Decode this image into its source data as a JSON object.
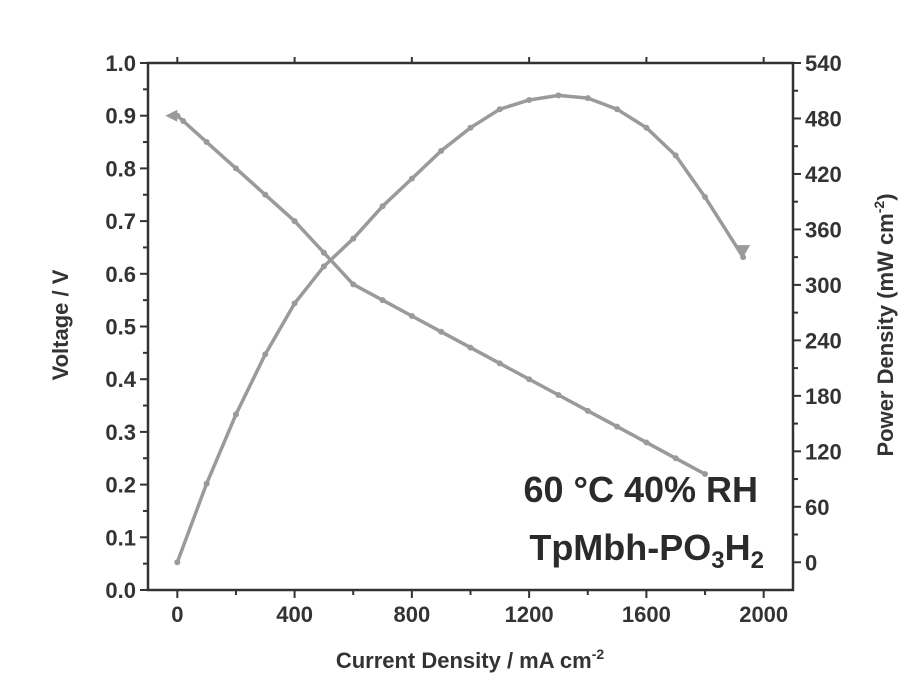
{
  "chart_data": {
    "type": "line",
    "xlabel": "Current Density / mA cm",
    "xlabel_sup": "-2",
    "ylabel_left": "Voltage / V",
    "ylabel_right": "Power Density (mW cm",
    "ylabel_right_sup": "-2",
    "ylabel_right_close": ")",
    "xlim": [
      -100,
      2100
    ],
    "ylim_left": [
      0.0,
      1.0
    ],
    "ylim_right": [
      -30,
      540
    ],
    "x_ticks": [
      0,
      400,
      800,
      1200,
      1600,
      2000
    ],
    "x_tick_labels": [
      "0",
      "400",
      "800",
      "1200",
      "1600",
      "2000"
    ],
    "y_left_ticks": [
      0.0,
      0.1,
      0.2,
      0.3,
      0.4,
      0.5,
      0.6,
      0.7,
      0.8,
      0.9,
      1.0
    ],
    "y_left_tick_labels": [
      "0.0",
      "0.1",
      "0.2",
      "0.3",
      "0.4",
      "0.5",
      "0.6",
      "0.7",
      "0.8",
      "0.9",
      "1.0"
    ],
    "y_right_ticks": [
      0,
      60,
      120,
      180,
      240,
      300,
      360,
      420,
      480,
      540
    ],
    "y_right_tick_labels": [
      "0",
      "60",
      "120",
      "180",
      "240",
      "300",
      "360",
      "420",
      "480",
      "540"
    ],
    "annotation_line1": "60 °C 40% RH",
    "annotation_line2_main": "TpMbh-PO",
    "annotation_line2_sub1": "3",
    "annotation_line2_mid": "H",
    "annotation_line2_sub2": "2",
    "grid": false,
    "colors": {
      "series": "#9a9a9a",
      "axis": "#333333",
      "text": "#333333"
    },
    "series": [
      {
        "axis": "left",
        "x": [
          0,
          20,
          100,
          200,
          300,
          400,
          500,
          600,
          700,
          800,
          900,
          1000,
          1100,
          1200,
          1300,
          1400,
          1500,
          1600,
          1700,
          1800
        ],
        "y": [
          0.9,
          0.89,
          0.85,
          0.8,
          0.75,
          0.7,
          0.64,
          0.58,
          0.55,
          0.52,
          0.49,
          0.46,
          0.43,
          0.4,
          0.37,
          0.34,
          0.31,
          0.28,
          0.25,
          0.22
        ]
      },
      {
        "axis": "right",
        "x": [
          0,
          100,
          200,
          300,
          400,
          500,
          600,
          700,
          800,
          900,
          1000,
          1100,
          1200,
          1300,
          1400,
          1500,
          1600,
          1700,
          1800,
          1930
        ],
        "y": [
          0,
          85,
          160,
          225,
          280,
          320,
          350,
          385,
          415,
          445,
          470,
          490,
          500,
          505,
          502,
          490,
          470,
          440,
          395,
          330
        ]
      }
    ]
  }
}
